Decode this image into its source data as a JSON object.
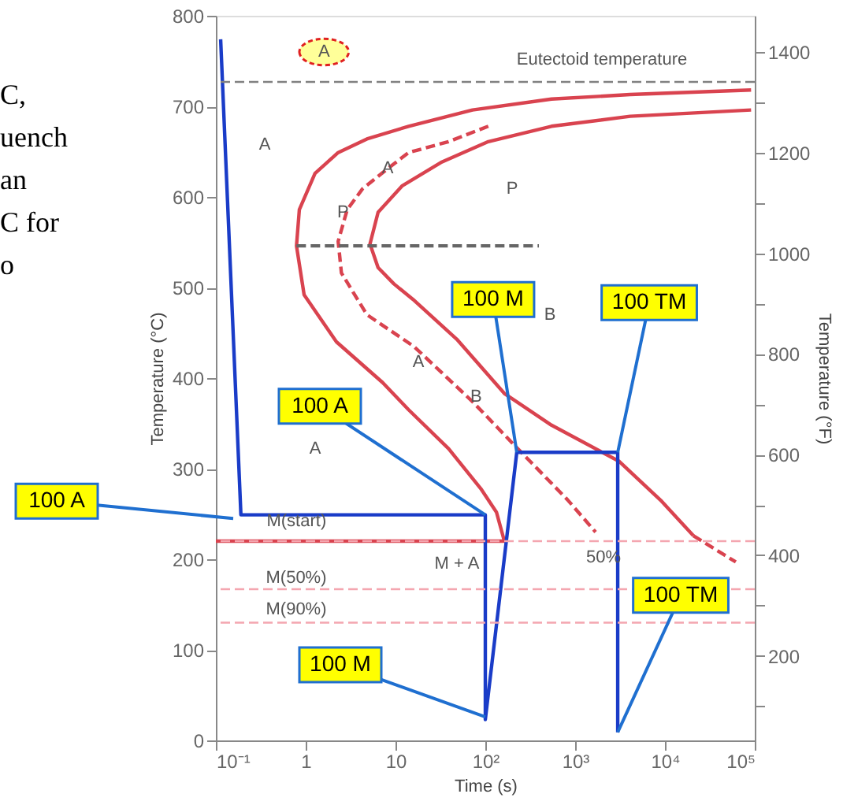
{
  "chart_data": {
    "type": "line",
    "xlabel": "Time (s)",
    "ylabel": "Temperature (°C)",
    "y2label": "Temperature (°F)",
    "log": "x",
    "grid": false,
    "xlim": [
      0.1,
      100000
    ],
    "xticks": [
      {
        "value": 0.1,
        "label": "10⁻¹"
      },
      1,
      10,
      {
        "value": 100,
        "label": "10²"
      },
      {
        "value": 1000,
        "label": "10³"
      },
      {
        "value": 10000,
        "label": "10⁴"
      },
      {
        "value": 100000,
        "label": "10⁵"
      }
    ],
    "ylim": [
      0,
      800
    ],
    "yticks": [
      0,
      100,
      200,
      300,
      400,
      500,
      600,
      700,
      800
    ],
    "y2lim": [
      32,
      1472
    ],
    "y2ticks": [
      {
        "value": 100,
        "label": null
      },
      200,
      {
        "value": 300,
        "label": null
      },
      400,
      {
        "value": 500,
        "label": null
      },
      600,
      {
        "value": 700,
        "label": null
      },
      800,
      {
        "value": 900,
        "label": null
      },
      1000,
      {
        "value": 1100,
        "label": null
      },
      1200,
      {
        "value": 1300,
        "label": null
      },
      1400
    ],
    "series": [
      {
        "color": "#d9434f",
        "line_style": "solid",
        "x": [
          0.1,
          163,
          133,
          89,
          39,
          14,
          7.2,
          2.2,
          0.96,
          0.79,
          0.85,
          1.27,
          2.3,
          4.8,
          14,
          72,
          546,
          4100,
          91000
        ],
        "values": [
          220,
          220,
          252,
          278,
          322,
          365,
          395,
          440,
          492,
          546,
          586,
          626,
          649,
          664,
          678,
          696,
          708,
          713,
          718
        ]
      },
      {
        "color": "#d9434f",
        "line_style": "solid",
        "x": [
          91000,
          4100,
          546,
          108,
          32,
          11.8,
          6.4,
          5.2,
          6.4,
          9.6,
          15.6,
          48,
          163,
          546,
          3100,
          9200,
          20700
        ],
        "values": [
          696,
          689,
          678,
          661,
          638,
          612,
          583,
          548,
          522,
          504,
          487,
          443,
          383,
          348,
          308,
          264,
          226
        ]
      },
      {
        "color": "#d9434f",
        "line_style": "dashed",
        "x": [
          20700,
          61500
        ],
        "values": [
          226,
          197
        ]
      },
      {
        "color": "#d9434f",
        "line_style": "dashed",
        "x": [
          108,
          39,
          14,
          7.9,
          4.3,
          2.9,
          2.3,
          2.5,
          4.8,
          16,
          72,
          215,
          817,
          1690
        ],
        "values": [
          678,
          661,
          649,
          630,
          609,
          586,
          551,
          516,
          470,
          435,
          374,
          325,
          266,
          230
        ]
      },
      {
        "color": "#666666",
        "line_style": "dashed",
        "x": [
          0.79,
          395
        ],
        "values": [
          546,
          546
        ]
      },
      {
        "color": "#1a3cc8",
        "line_style": "solid",
        "x": [
          0.113,
          0.19,
          100,
          100,
          224,
          2980,
          2980
        ],
        "values": [
          774,
          249,
          249,
          23,
          318,
          318,
          9
        ]
      }
    ],
    "ref_lines": [
      {
        "axis": "y",
        "value": 727,
        "color": "#808080",
        "line_style": "dashed"
      },
      {
        "axis": "y",
        "value": 220,
        "color": "#f4a6b0",
        "line_style": "dashed"
      },
      {
        "axis": "y",
        "value": 167,
        "color": "#f4a6b0",
        "line_style": "dashed"
      },
      {
        "axis": "y",
        "value": 130,
        "color": "#f4a6b0",
        "line_style": "dashed"
      }
    ],
    "annotations": [
      {
        "text": "100 A",
        "x": 0.156,
        "y": 245
      },
      {
        "text": "100 A",
        "x": 100,
        "y": 249
      },
      {
        "text": "100 M",
        "x": 224,
        "y": 318
      },
      {
        "text": "100 TM",
        "x": 2980,
        "y": 318
      },
      {
        "text": "100 M",
        "x": 100,
        "y": 26
      },
      {
        "text": "100 TM",
        "x": 2980,
        "y": 9
      },
      {
        "text": "A",
        "x": 1.6,
        "y": 760
      },
      "A",
      {
        "text": "P",
        "x": 2.6,
        "y": 583
      },
      {
        "text": "A",
        "x": 8.2,
        "y": 631
      },
      "P",
      {
        "text": "A",
        "x": 18,
        "y": 417
      },
      {
        "text": "B",
        "x": 79,
        "y": 379
      },
      "B",
      "A",
      "M + A",
      "50%",
      {
        "text": "M(start)",
        "x": 0.79,
        "y": 242
      },
      "M(50%)",
      "M(90%)",
      "Eutectoid temperature",
      "C,\nuench\nan\nC for\no"
    ]
  }
}
